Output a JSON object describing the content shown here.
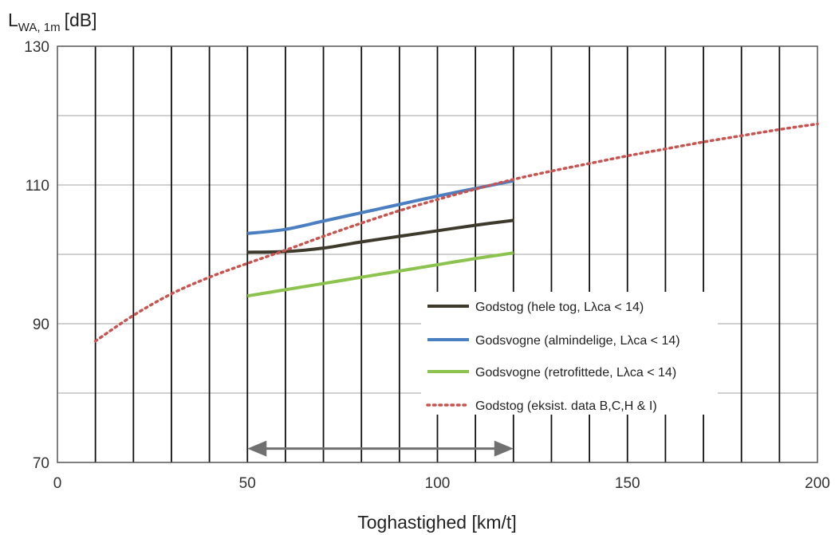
{
  "chart_data": {
    "type": "line",
    "ylabel_main": "L",
    "ylabel_sub": "WA, 1m",
    "ylabel_unit": "[dB]",
    "xlabel": "Toghastighed  [km/t]",
    "xlim": [
      0,
      200
    ],
    "ylim": [
      70,
      130
    ],
    "x_major_ticks": [
      0,
      50,
      100,
      150,
      200
    ],
    "y_major_ticks": [
      70,
      90,
      110,
      130
    ],
    "x_tick_labels": [
      "0",
      "50",
      "100",
      "150",
      "200"
    ],
    "y_tick_labels": [
      "70",
      "90",
      "110",
      "130"
    ],
    "vertical_gridlines_every": 10,
    "horizontal_gridlines_every": 10,
    "legend_position": "lower-right inside plot",
    "series": [
      {
        "name": "Godstog (hele tog, Lλca < 14)",
        "style": "solid",
        "color": "#3d3a2c",
        "x": [
          50,
          60,
          70,
          80,
          90,
          100,
          110,
          120
        ],
        "y": [
          100.3,
          100.4,
          100.9,
          101.8,
          102.6,
          103.4,
          104.2,
          104.9
        ]
      },
      {
        "name": "Godsvogne (almindelige, Lλca < 14)",
        "style": "solid",
        "color": "#4a7fc1",
        "x": [
          50,
          60,
          70,
          80,
          90,
          100,
          110,
          120
        ],
        "y": [
          103.0,
          103.6,
          104.8,
          106.0,
          107.2,
          108.4,
          109.5,
          110.6
        ]
      },
      {
        "name": "Godsvogne (retrofittede, Lλca < 14)",
        "style": "solid",
        "color": "#8cc34f",
        "x": [
          50,
          60,
          70,
          80,
          90,
          100,
          110,
          120
        ],
        "y": [
          94.0,
          94.9,
          95.8,
          96.7,
          97.6,
          98.5,
          99.4,
          100.2
        ]
      },
      {
        "name": "Godstog (eksist. data B,C,H & I)",
        "style": "dotted",
        "color": "#c9534f",
        "x": [
          10,
          20,
          30,
          40,
          50,
          60,
          70,
          80,
          90,
          100,
          110,
          120,
          130,
          140,
          150,
          160,
          170,
          180,
          190,
          200
        ],
        "y": [
          87.5,
          91.2,
          94.3,
          96.7,
          98.7,
          100.6,
          102.6,
          104.5,
          106.3,
          107.9,
          109.4,
          110.8,
          112.0,
          113.1,
          114.2,
          115.2,
          116.2,
          117.1,
          118.0,
          118.8
        ]
      }
    ],
    "range_arrow": {
      "from": 50,
      "to": 120,
      "y": 72,
      "color": "#707070"
    }
  }
}
